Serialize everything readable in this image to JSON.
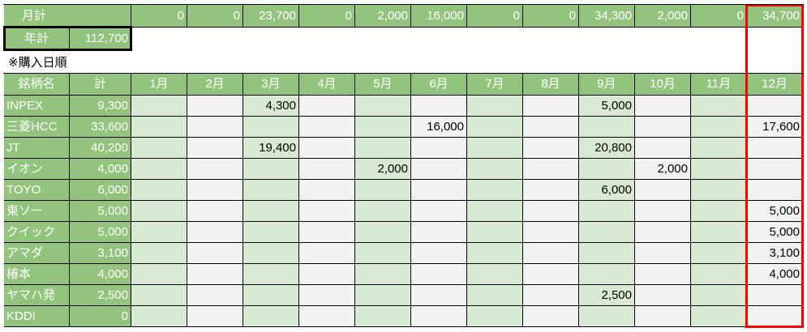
{
  "monthly_total": {
    "label": "月計",
    "values": [
      "0",
      "0",
      "23,700",
      "0",
      "2,000",
      "16,000",
      "0",
      "0",
      "34,300",
      "2,000",
      "0",
      "34,700"
    ]
  },
  "annual_total": {
    "label": "年計",
    "value": "112,700"
  },
  "note": "※購入日順",
  "headers": [
    "銘柄名",
    "計",
    "1月",
    "2月",
    "3月",
    "4月",
    "5月",
    "6月",
    "7月",
    "8月",
    "9月",
    "10月",
    "11月",
    "12月"
  ],
  "rows": [
    {
      "name": "INPEX",
      "total": "9,300",
      "months": [
        "",
        "",
        "4,300",
        "",
        "",
        "",
        "",
        "",
        "5,000",
        "",
        "",
        ""
      ]
    },
    {
      "name": "三菱HCC",
      "total": "33,600",
      "months": [
        "",
        "",
        "",
        "",
        "",
        "16,000",
        "",
        "",
        "",
        "",
        "",
        "17,600"
      ]
    },
    {
      "name": "JT",
      "total": "40,200",
      "months": [
        "",
        "",
        "19,400",
        "",
        "",
        "",
        "",
        "",
        "20,800",
        "",
        "",
        ""
      ]
    },
    {
      "name": "イオン",
      "total": "4,000",
      "months": [
        "",
        "",
        "",
        "",
        "2,000",
        "",
        "",
        "",
        "",
        "2,000",
        "",
        ""
      ]
    },
    {
      "name": "TOYO",
      "total": "6,000",
      "months": [
        "",
        "",
        "",
        "",
        "",
        "",
        "",
        "",
        "6,000",
        "",
        "",
        ""
      ]
    },
    {
      "name": "東ソー",
      "total": "5,000",
      "months": [
        "",
        "",
        "",
        "",
        "",
        "",
        "",
        "",
        "",
        "",
        "",
        "5,000"
      ]
    },
    {
      "name": "クイック",
      "total": "5,000",
      "months": [
        "",
        "",
        "",
        "",
        "",
        "",
        "",
        "",
        "",
        "",
        "",
        "5,000"
      ]
    },
    {
      "name": "アマダ",
      "total": "3,100",
      "months": [
        "",
        "",
        "",
        "",
        "",
        "",
        "",
        "",
        "",
        "",
        "",
        "3,100"
      ]
    },
    {
      "name": "椿本",
      "total": "4,000",
      "months": [
        "",
        "",
        "",
        "",
        "",
        "",
        "",
        "",
        "",
        "",
        "",
        "4,000"
      ]
    },
    {
      "name": "ヤマハ発",
      "total": "2,500",
      "months": [
        "",
        "",
        "",
        "",
        "",
        "",
        "",
        "",
        "2,500",
        "",
        "",
        ""
      ]
    },
    {
      "name": "KDDI",
      "total": "0",
      "months": [
        "",
        "",
        "",
        "",
        "",
        "",
        "",
        "",
        "",
        "",
        "",
        ""
      ]
    }
  ],
  "colors": {
    "header_green": "#93c47d",
    "odd_month": "#d9ead3",
    "even_month": "#f2f2f2",
    "highlight": "#ff0000"
  }
}
